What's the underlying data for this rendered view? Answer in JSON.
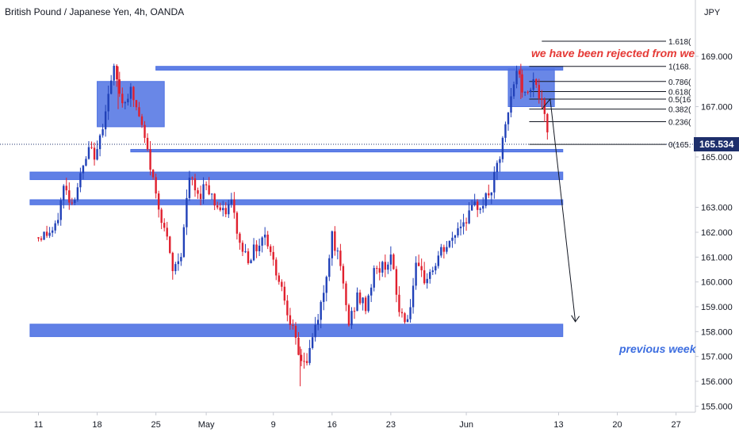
{
  "title": "British Pound / Japanese Yen, 4h, OANDA",
  "currency": "JPY",
  "price_label": "165.534",
  "annotations": {
    "rejected": "we have been rejected from we",
    "previous_week": "previous week"
  },
  "colors": {
    "up": "#2141b8",
    "down": "#e0202e",
    "zone": "#4f72e3",
    "price_tag": "#1e2f6b",
    "red_text": "#e53935",
    "blue_text": "#3d6ee0"
  },
  "fib_labels": [
    "1.618(",
    "1(168.",
    "0.786(",
    "0.618(",
    "0.5(16",
    "0.382(",
    "0.236(",
    "0(165."
  ],
  "chart_data": {
    "type": "candlestick",
    "title": "British Pound / Japanese Yen, 4h, OANDA",
    "y_unit": "JPY",
    "ylim": [
      155.0,
      170.0
    ],
    "y_ticks": [
      "169.000",
      "167.000",
      "165.000",
      "163.000",
      "162.000",
      "161.000",
      "160.000",
      "159.000",
      "158.000",
      "157.000",
      "156.000",
      "155.000"
    ],
    "x_ticks": [
      "11",
      "18",
      "25",
      "May",
      "9",
      "16",
      "23",
      "Jun",
      "13",
      "20",
      "27"
    ],
    "last_price": 165.534,
    "path": [
      [
        11,
        161.8
      ],
      [
        13,
        162.1
      ],
      [
        14,
        163.8
      ],
      [
        15,
        163.2
      ],
      [
        16,
        164.2
      ],
      [
        17,
        165.2
      ],
      [
        18,
        165.1
      ],
      [
        19,
        167.0
      ],
      [
        20,
        168.4
      ],
      [
        21,
        167.2
      ],
      [
        22,
        167.6
      ],
      [
        23,
        166.6
      ],
      [
        24,
        165.2
      ],
      [
        25,
        163.5
      ],
      [
        26,
        162.2
      ],
      [
        27,
        160.4
      ],
      [
        28,
        161.2
      ],
      [
        29,
        164.2
      ],
      [
        30,
        163.4
      ],
      [
        31,
        164.0
      ],
      [
        32,
        163.2
      ],
      [
        33,
        162.7
      ],
      [
        34,
        163.2
      ],
      [
        35,
        161.5
      ],
      [
        36,
        161.0
      ],
      [
        37,
        161.4
      ],
      [
        38,
        162.0
      ],
      [
        39,
        160.8
      ],
      [
        40,
        159.8
      ],
      [
        41,
        158.5
      ],
      [
        42,
        157.0
      ],
      [
        43,
        156.8
      ],
      [
        44,
        158.2
      ],
      [
        45,
        159.5
      ],
      [
        46,
        162.0
      ],
      [
        47,
        160.5
      ],
      [
        48,
        158.3
      ],
      [
        49,
        159.4
      ],
      [
        50,
        159.0
      ],
      [
        51,
        160.4
      ],
      [
        52,
        160.6
      ],
      [
        53,
        161.0
      ],
      [
        54,
        158.8
      ],
      [
        55,
        158.5
      ],
      [
        56,
        160.5
      ],
      [
        57,
        160.1
      ],
      [
        58,
        160.5
      ],
      [
        59,
        161.2
      ],
      [
        60,
        161.5
      ],
      [
        61,
        162.2
      ],
      [
        62,
        162.6
      ],
      [
        63,
        163.0
      ],
      [
        64,
        163.2
      ],
      [
        65,
        163.7
      ],
      [
        66,
        165.0
      ],
      [
        67,
        166.7
      ],
      [
        68,
        168.5
      ],
      [
        69,
        167.4
      ],
      [
        70,
        168.2
      ],
      [
        71,
        167.0
      ],
      [
        72,
        165.5
      ]
    ],
    "zones": [
      {
        "x": [
          18,
          26
        ],
        "y": [
          166.2,
          168.0
        ]
      },
      {
        "x": [
          67,
          72.5
        ],
        "y": [
          167.0,
          168.5
        ]
      },
      {
        "x": [
          10,
          73.5
        ],
        "y": [
          164.1,
          164.4
        ]
      },
      {
        "x": [
          10,
          73.5
        ],
        "y": [
          163.1,
          163.3
        ]
      },
      {
        "x": [
          10,
          73.5
        ],
        "y": [
          157.8,
          158.3
        ]
      },
      {
        "x": [
          25,
          73.5
        ],
        "y": [
          168.45,
          168.6
        ]
      },
      {
        "x": [
          22,
          73.5
        ],
        "y": [
          165.2,
          165.3
        ]
      }
    ],
    "fib_levels": [
      169.6,
      168.6,
      168.0,
      167.6,
      167.3,
      166.9,
      166.4,
      165.5
    ],
    "projection": [
      [
        71,
        166.9
      ],
      [
        72,
        167.3
      ],
      [
        75,
        158.4
      ]
    ]
  }
}
